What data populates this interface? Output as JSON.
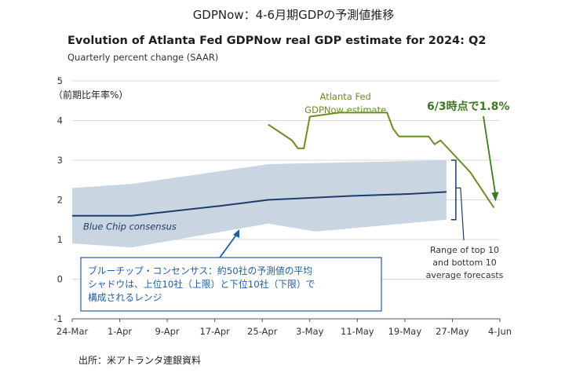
{
  "page_title": "GDPNow：4-6月期GDPの予測値推移",
  "y_unit_label": "（前期比年率%）",
  "source": "出所：米アトランタ連銀資料",
  "callout_note": {
    "lines": [
      "ブルーチップ・コンセンサス：約50社の予測値の平均",
      "シャドウは、上位10社（上限）と下位10社（下限）で",
      "構成されるレンジ"
    ]
  },
  "colors": {
    "gdpnow": "#6b8e23",
    "consensus": "#1f3b6e",
    "range": "#c9d5e0",
    "annotation": "#3d7a1f",
    "grid": "#d9d9d9",
    "callout": "#1f5fa8",
    "bracket": "#1f3b6e"
  },
  "chart_data": {
    "type": "line",
    "title": "Evolution of Atlanta Fed GDPNow real GDP estimate for 2024: Q2",
    "subtitle": "Quarterly percent change (SAAR)",
    "xlabel": "",
    "ylabel": "（前期比年率%）",
    "ylim": [
      -1,
      5
    ],
    "yticks": [
      -1,
      0,
      1,
      2,
      3,
      4,
      5
    ],
    "xticks": [
      "24-Mar",
      "1-Apr",
      "9-Apr",
      "17-Apr",
      "25-Apr",
      "3-May",
      "11-May",
      "19-May",
      "27-May",
      "4-Jun"
    ],
    "grid": true,
    "series": [
      {
        "name": "Atlanta Fed GDPNow estimate",
        "points": [
          [
            "4-26",
            3.9
          ],
          [
            "4-30",
            3.5
          ],
          [
            "5-1",
            3.3
          ],
          [
            "5-2",
            3.3
          ],
          [
            "5-3",
            4.1
          ],
          [
            "5-8",
            4.2
          ],
          [
            "5-16",
            4.2
          ],
          [
            "5-17",
            3.8
          ],
          [
            "5-18",
            3.6
          ],
          [
            "5-23",
            3.6
          ],
          [
            "5-24",
            3.4
          ],
          [
            "5-25",
            3.5
          ],
          [
            "5-30",
            2.7
          ],
          [
            "6-3",
            1.8
          ]
        ]
      },
      {
        "name": "Blue Chip consensus",
        "points": [
          [
            "3-24",
            1.6
          ],
          [
            "4-3",
            1.6
          ],
          [
            "4-18",
            1.85
          ],
          [
            "4-26",
            2.0
          ],
          [
            "5-10",
            2.1
          ],
          [
            "5-20",
            2.15
          ],
          [
            "5-26",
            2.2
          ]
        ]
      },
      {
        "name": "Range of top 10 and bottom 10 average forecasts",
        "upper": [
          [
            "3-24",
            2.3
          ],
          [
            "4-3",
            2.4
          ],
          [
            "4-26",
            2.9
          ],
          [
            "5-26",
            3.0
          ]
        ],
        "lower": [
          [
            "3-24",
            0.9
          ],
          [
            "4-3",
            0.8
          ],
          [
            "4-26",
            1.4
          ],
          [
            "5-4",
            1.2
          ],
          [
            "5-26",
            1.5
          ]
        ]
      }
    ],
    "annotations": [
      {
        "text": "Atlanta Fed",
        "anchor": "gdpnow-label"
      },
      {
        "text": "GDPNow estimate",
        "anchor": "gdpnow-label"
      },
      {
        "text": "6/3時点で1.8%",
        "anchor": "latest-value"
      },
      {
        "text": "Blue Chip consensus",
        "anchor": "consensus-label"
      },
      {
        "text": "Range of top 10",
        "anchor": "range-label"
      },
      {
        "text": "and bottom 10",
        "anchor": "range-label"
      },
      {
        "text": "average forecasts",
        "anchor": "range-label"
      }
    ]
  }
}
